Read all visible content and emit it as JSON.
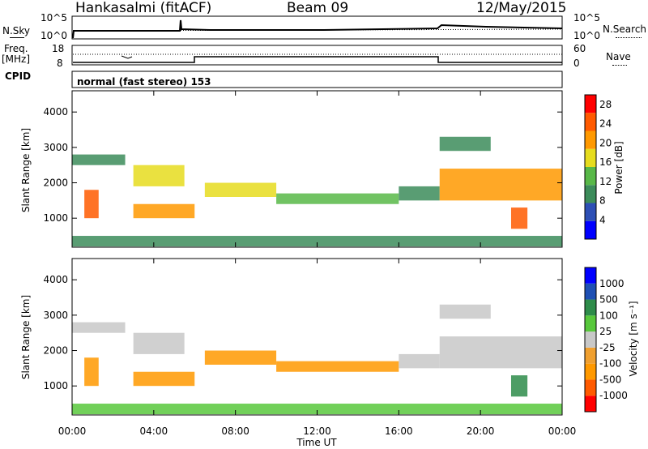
{
  "header": {
    "station": "Hankasalmi (fitACF)",
    "beam": "Beam 09",
    "date": "12/May/2015"
  },
  "noise_panel": {
    "left_label": "N.Sky",
    "right_label": "N.Search",
    "left_ticks": [
      "10^5",
      "10^0"
    ],
    "right_ticks": [
      "10^5",
      "10^0"
    ]
  },
  "freq_panel": {
    "left_label_1": "Freq.",
    "left_label_2": "[MHz]",
    "left_ticks": [
      "18",
      "8"
    ],
    "right_ticks": [
      "60",
      "0"
    ],
    "right_label": "Nave",
    "cpid_label": "CPID",
    "cpid_value": "normal (fast stereo) 153"
  },
  "colors": {
    "power_scale": [
      "#0000ff",
      "#2d4fb5",
      "#3c8c5a",
      "#58b848",
      "#e6dc1e",
      "#ff9900",
      "#ff5a00",
      "#ff0000"
    ],
    "velocity_scale": [
      "#ff0000",
      "#ff5a00",
      "#ff9900",
      "#f0a030",
      "#c8c8c8",
      "#58c83c",
      "#2e8c4a",
      "#1e50b4",
      "#0000ff"
    ]
  },
  "chart_data": [
    {
      "type": "heatmap",
      "title": "",
      "ylabel": "Slant Range [km]",
      "xlabel": "",
      "y_ticks": [
        "4000",
        "3000",
        "2000",
        "1000"
      ],
      "ylim": [
        180,
        4600
      ],
      "xlim": [
        0,
        24
      ],
      "colorbar": {
        "label": "Power [dB]",
        "ticks": [
          "28",
          "24",
          "20",
          "16",
          "12",
          "8",
          "4"
        ],
        "range": [
          0,
          30
        ]
      },
      "echo_regions": [
        {
          "x": [
            0.6,
            1.3
          ],
          "y": [
            1000,
            1800
          ],
          "value": 24
        },
        {
          "x": [
            0.0,
            2.6
          ],
          "y": [
            2500,
            2800
          ],
          "value": 10
        },
        {
          "x": [
            3.0,
            6.0
          ],
          "y": [
            1000,
            1400
          ],
          "value": 20
        },
        {
          "x": [
            3.0,
            5.5
          ],
          "y": [
            1900,
            2500
          ],
          "value": 16
        },
        {
          "x": [
            6.5,
            10.0
          ],
          "y": [
            1600,
            2000
          ],
          "value": 18
        },
        {
          "x": [
            10.0,
            16.0
          ],
          "y": [
            1400,
            1700
          ],
          "value": 12
        },
        {
          "x": [
            16.0,
            18.0
          ],
          "y": [
            1500,
            1900
          ],
          "value": 10
        },
        {
          "x": [
            18.0,
            24.0
          ],
          "y": [
            1500,
            2400
          ],
          "value": 20
        },
        {
          "x": [
            18.0,
            20.5
          ],
          "y": [
            2900,
            3300
          ],
          "value": 8
        },
        {
          "x": [
            21.5,
            22.3
          ],
          "y": [
            700,
            1300
          ],
          "value": 26
        },
        {
          "x": [
            0.0,
            24.0
          ],
          "y": [
            200,
            500
          ],
          "value": 10
        }
      ]
    },
    {
      "type": "heatmap",
      "title": "",
      "ylabel": "Slant Range [km]",
      "xlabel": "Time UT",
      "x_ticks": [
        "00:00",
        "04:00",
        "08:00",
        "12:00",
        "16:00",
        "20:00",
        "00:00"
      ],
      "y_ticks": [
        "4000",
        "3000",
        "2000",
        "1000"
      ],
      "ylim": [
        180,
        4600
      ],
      "xlim": [
        0,
        24
      ],
      "colorbar": {
        "label": "Velocity [m s⁻¹]",
        "ticks": [
          "1000",
          "500",
          "100",
          "25",
          "-25",
          "-100",
          "-500",
          "-1000"
        ]
      },
      "echo_regions": [
        {
          "x": [
            0.6,
            1.3
          ],
          "y": [
            1000,
            1800
          ],
          "value": -200
        },
        {
          "x": [
            0.0,
            2.6
          ],
          "y": [
            2500,
            2800
          ],
          "value": 0
        },
        {
          "x": [
            3.0,
            6.0
          ],
          "y": [
            1000,
            1400
          ],
          "value": -300
        },
        {
          "x": [
            3.0,
            5.5
          ],
          "y": [
            1900,
            2500
          ],
          "value": 0
        },
        {
          "x": [
            6.5,
            10.0
          ],
          "y": [
            1600,
            2000
          ],
          "value": -200
        },
        {
          "x": [
            10.0,
            16.0
          ],
          "y": [
            1400,
            1700
          ],
          "value": -150
        },
        {
          "x": [
            16.0,
            18.0
          ],
          "y": [
            1500,
            1900
          ],
          "value": 0
        },
        {
          "x": [
            18.0,
            24.0
          ],
          "y": [
            1500,
            2400
          ],
          "value": 0
        },
        {
          "x": [
            18.0,
            20.5
          ],
          "y": [
            2900,
            3300
          ],
          "value": 0
        },
        {
          "x": [
            21.5,
            22.3
          ],
          "y": [
            700,
            1300
          ],
          "value": 300
        },
        {
          "x": [
            0.0,
            24.0
          ],
          "y": [
            200,
            500
          ],
          "value": 100
        }
      ]
    }
  ]
}
